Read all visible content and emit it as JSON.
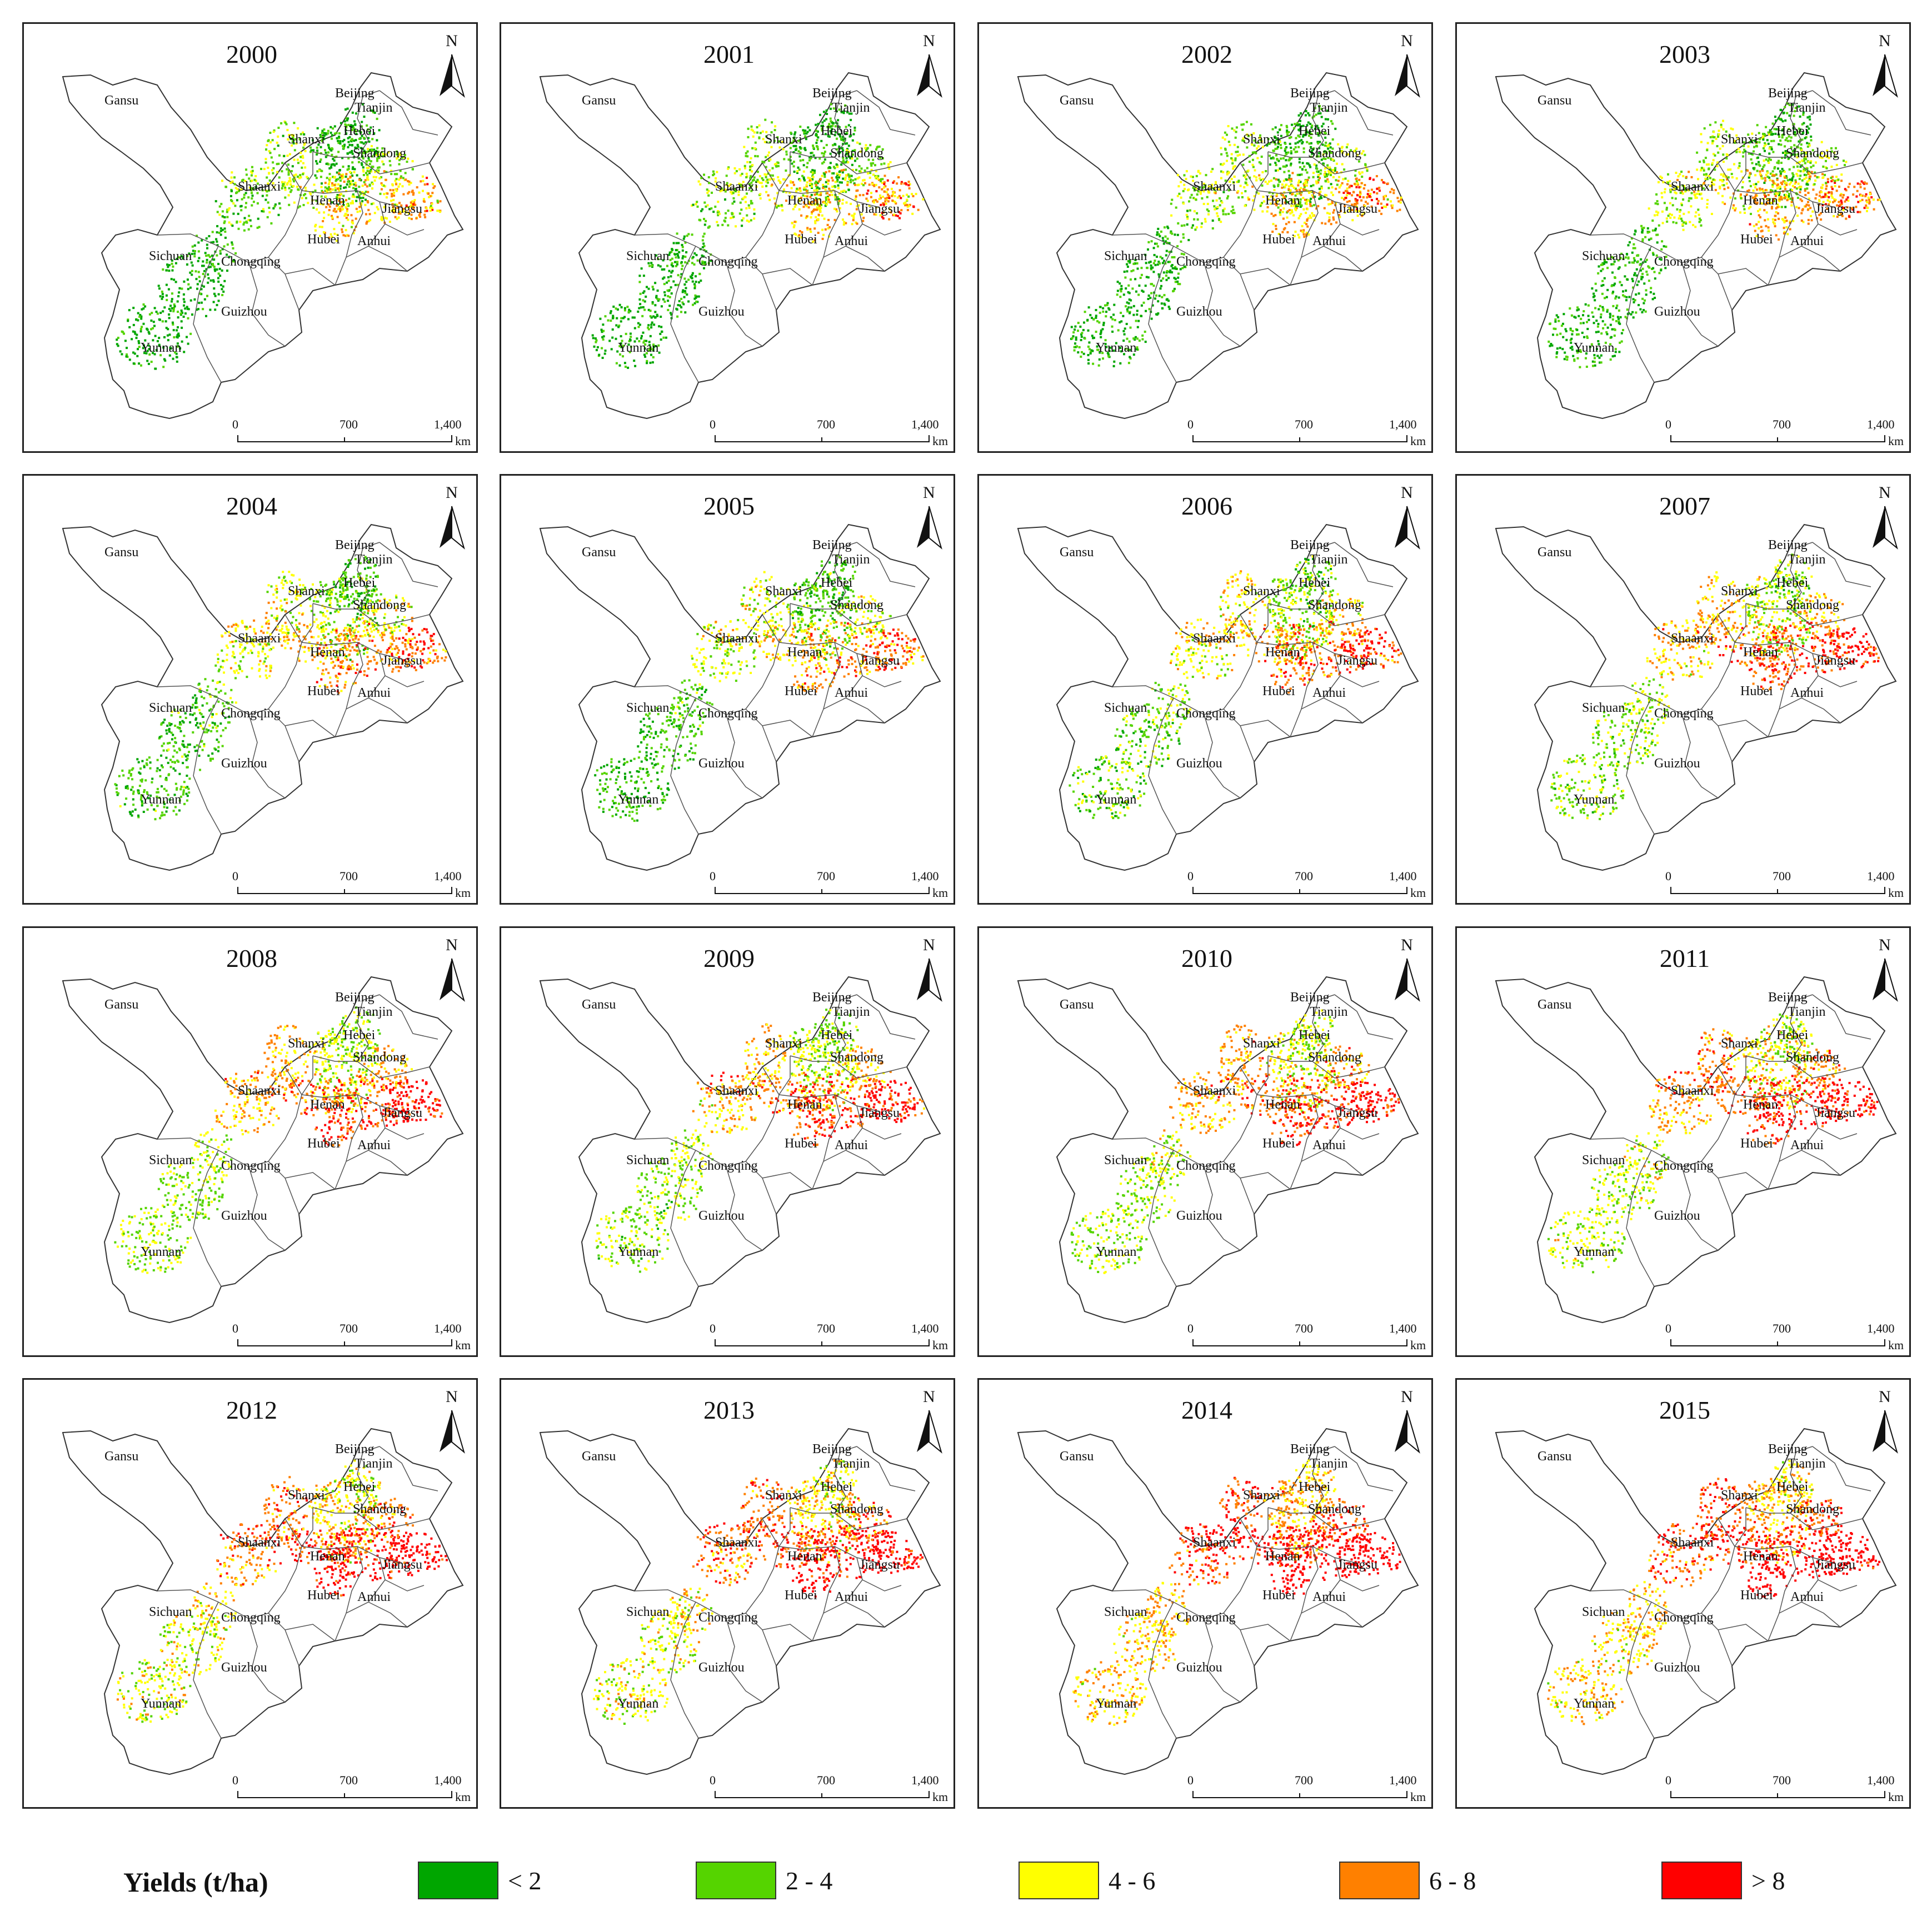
{
  "panels": [
    {
      "year": "2000",
      "intensity": 0.0
    },
    {
      "year": "2001",
      "intensity": 0.05
    },
    {
      "year": "2002",
      "intensity": 0.08
    },
    {
      "year": "2003",
      "intensity": 0.15
    },
    {
      "year": "2004",
      "intensity": 0.25
    },
    {
      "year": "2005",
      "intensity": 0.22
    },
    {
      "year": "2006",
      "intensity": 0.35
    },
    {
      "year": "2007",
      "intensity": 0.45
    },
    {
      "year": "2008",
      "intensity": 0.5
    },
    {
      "year": "2009",
      "intensity": 0.48
    },
    {
      "year": "2010",
      "intensity": 0.55
    },
    {
      "year": "2011",
      "intensity": 0.6
    },
    {
      "year": "2012",
      "intensity": 0.68
    },
    {
      "year": "2013",
      "intensity": 0.7
    },
    {
      "year": "2014",
      "intensity": 0.85
    },
    {
      "year": "2015",
      "intensity": 0.8
    }
  ],
  "north_arrow_label": "N",
  "provinces": [
    "Gansu",
    "Beijing",
    "Tianjin",
    "Hebei",
    "Shanxi",
    "Shandong",
    "Shaanxi",
    "Henan",
    "Jiangsu",
    "Hubei",
    "Anhui",
    "Sichuan",
    "Chongqing",
    "Guizhou",
    "Yunnan"
  ],
  "scale_bar": {
    "ticks": [
      "0",
      "700",
      "1,400"
    ],
    "unit": "km"
  },
  "legend": {
    "title": "Yields (t/ha)",
    "classes": [
      {
        "label": "< 2",
        "color": "#00a600"
      },
      {
        "label": "2 - 4",
        "color": "#55d400"
      },
      {
        "label": "4 - 6",
        "color": "#ffff00"
      },
      {
        "label": "6 - 8",
        "color": "#ff8000"
      },
      {
        "label": "> 8",
        "color": "#ff0000"
      }
    ]
  }
}
